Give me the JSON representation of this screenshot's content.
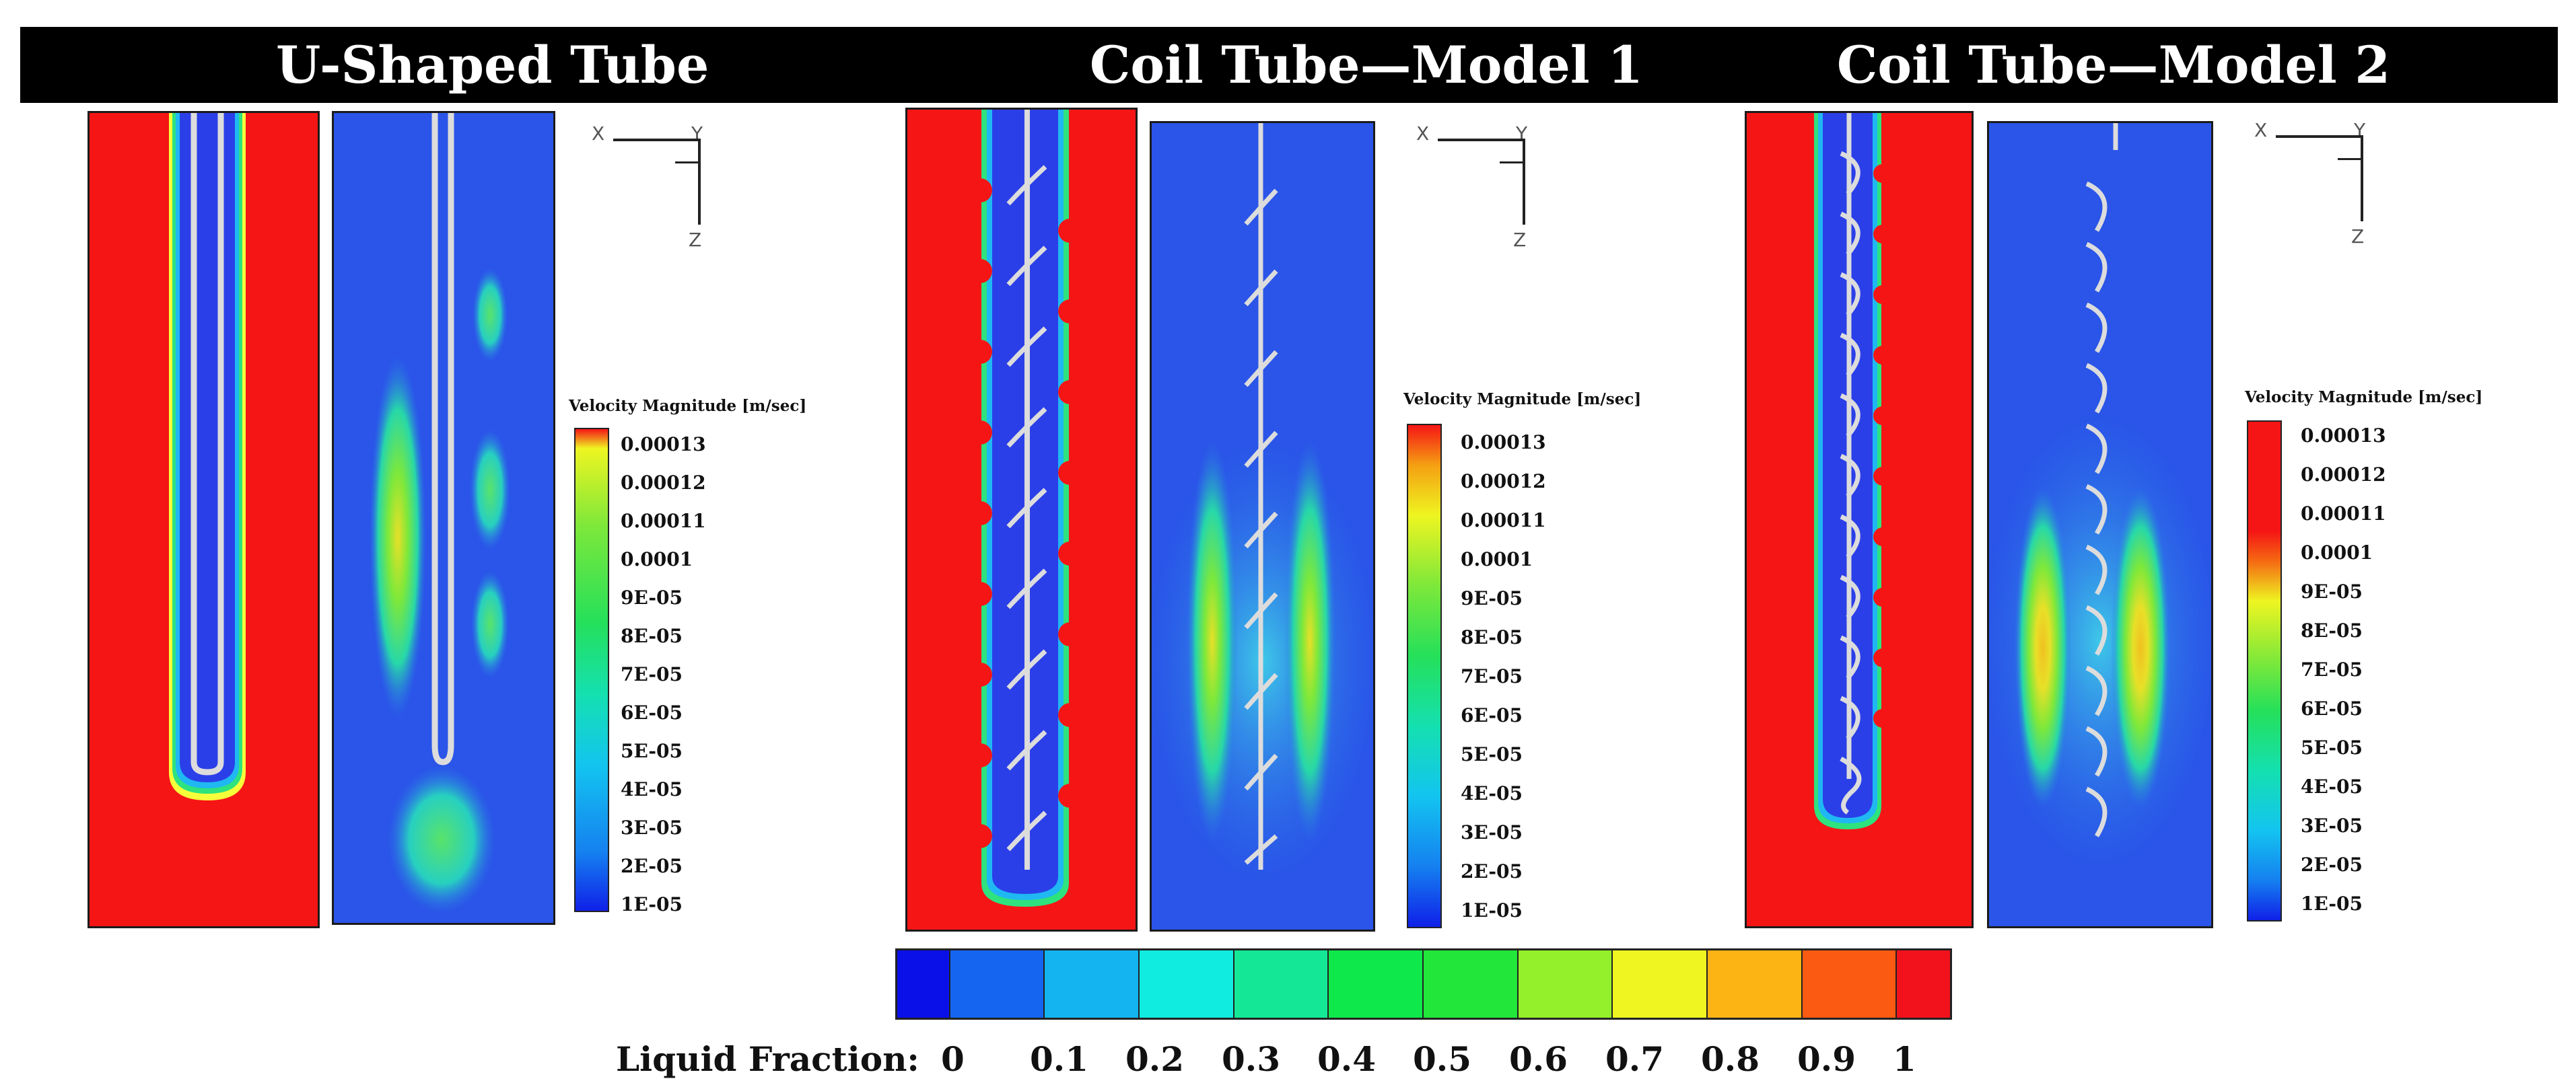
{
  "panels": [
    {
      "title": "U-Shaped Tube"
    },
    {
      "title": "Coil Tube—Model 1"
    },
    {
      "title": "Coil Tube—Model 2"
    }
  ],
  "axes_labels": {
    "x": "X",
    "y": "Y",
    "z": "Z"
  },
  "velocity_legends": [
    {
      "title": "Velocity Magnitude [m/sec]",
      "labels": [
        "0.00013",
        "0.00012",
        "0.00011",
        "0.0001",
        "9E-05",
        "8E-05",
        "7E-05",
        "6E-05",
        "5E-05",
        "4E-05",
        "3E-05",
        "2E-05",
        "1E-05"
      ]
    },
    {
      "title": "Velocity Magnitude [m/sec]",
      "labels": [
        "0.00013",
        "0.00012",
        "0.00011",
        "0.0001",
        "9E-05",
        "8E-05",
        "7E-05",
        "6E-05",
        "5E-05",
        "4E-05",
        "3E-05",
        "2E-05",
        "1E-05"
      ]
    },
    {
      "title": "Velocity Magnitude [m/sec]",
      "labels": [
        "0.00013",
        "0.00012",
        "0.00011",
        "0.0001",
        "9E-05",
        "8E-05",
        "7E-05",
        "6E-05",
        "5E-05",
        "4E-05",
        "3E-05",
        "2E-05",
        "1E-05"
      ]
    }
  ],
  "liquid_fraction": {
    "title": "Liquid Fraction:",
    "labels": [
      "0",
      "0.1",
      "0.2",
      "0.3",
      "0.4",
      "0.5",
      "0.6",
      "0.7",
      "0.8",
      "0.9",
      "1"
    ],
    "colors": [
      "#0a10e8",
      "#1565f0",
      "#13b4f0",
      "#11ece0",
      "#14e896",
      "#0fe84a",
      "#22e63a",
      "#93f02a",
      "#eef521",
      "#fbb414",
      "#fb5a12",
      "#f2121c"
    ]
  },
  "colors": {
    "liquid": "#f51515",
    "solid": "#2b3fe8",
    "velocity_low": "#2447e6",
    "velocity_mid": "#27d8a8",
    "velocity_high": "#e8e028",
    "tube": "#dcdcdc"
  }
}
